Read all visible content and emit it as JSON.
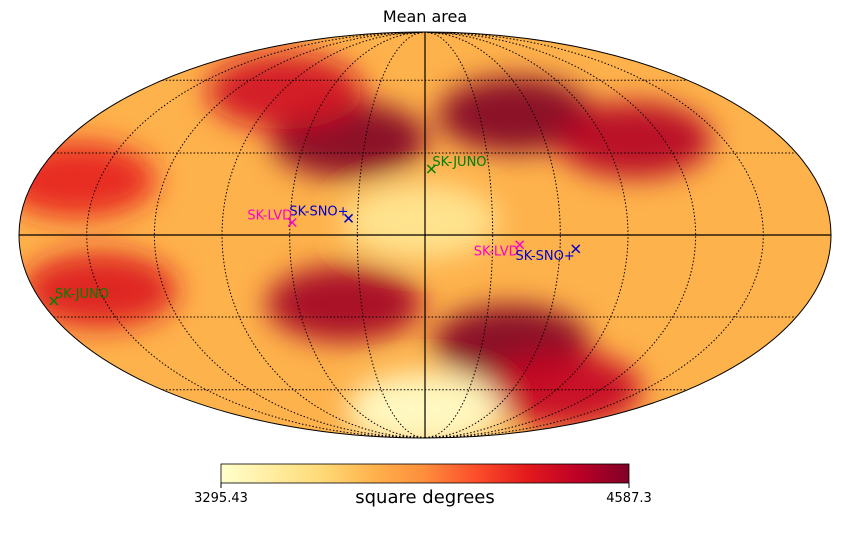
{
  "chart_data": {
    "type": "heatmap",
    "projection": "mollweide",
    "title": "Mean area",
    "colorbar": {
      "label": "square degrees",
      "min": 3295.43,
      "max": 4587.3,
      "min_label": "3295.43",
      "max_label": "4587.3",
      "colormap": [
        "#ffffcc",
        "#ffeda0",
        "#fed976",
        "#feb24c",
        "#fd8d3c",
        "#fc4e2a",
        "#e31a1c",
        "#bd0026",
        "#800026"
      ]
    },
    "graticule": {
      "parallels_deg": [
        -60,
        -30,
        0,
        30,
        60
      ],
      "meridians_deg": [
        -150,
        -120,
        -90,
        -60,
        -30,
        0,
        30,
        60,
        90,
        120,
        150
      ]
    },
    "markers": [
      {
        "label": "SK-JUNO",
        "lon": -3,
        "lat": 24,
        "color": "#008000"
      },
      {
        "label": "SK-SNO+",
        "lon": 34,
        "lat": 6,
        "color": "#0000cc"
      },
      {
        "label": "SK-LVD",
        "lon": 59,
        "lat": 4.5,
        "color": "#ff00cc"
      },
      {
        "label": "SK-LVD",
        "lon": -42,
        "lat": -3.5,
        "color": "#ff00cc"
      },
      {
        "label": "SK-SNO+",
        "lon": -67,
        "lat": -5,
        "color": "#0000cc"
      },
      {
        "label": "SK-JUNO",
        "lon": 174,
        "lat": -24,
        "color": "#008000"
      }
    ],
    "heat_spots": [
      {
        "lon": 38,
        "lat": 35,
        "value": 4587.3
      },
      {
        "lon": 88,
        "lat": 55,
        "value": 4350
      },
      {
        "lon": -50,
        "lat": 45,
        "value": 4587.3
      },
      {
        "lon": -105,
        "lat": 35,
        "value": 4450
      },
      {
        "lon": -45,
        "lat": -40,
        "value": 4587.3
      },
      {
        "lon": -95,
        "lat": -60,
        "value": 4400
      },
      {
        "lon": 38,
        "lat": -25,
        "value": 4500
      },
      {
        "lon": 150,
        "lat": -20,
        "value": 4300
      },
      {
        "lon": 160,
        "lat": 20,
        "value": 4250
      },
      {
        "lon": 0,
        "lat": -70,
        "value": 3295.43
      },
      {
        "lon": 2,
        "lat": 5,
        "value": 3500
      }
    ]
  }
}
